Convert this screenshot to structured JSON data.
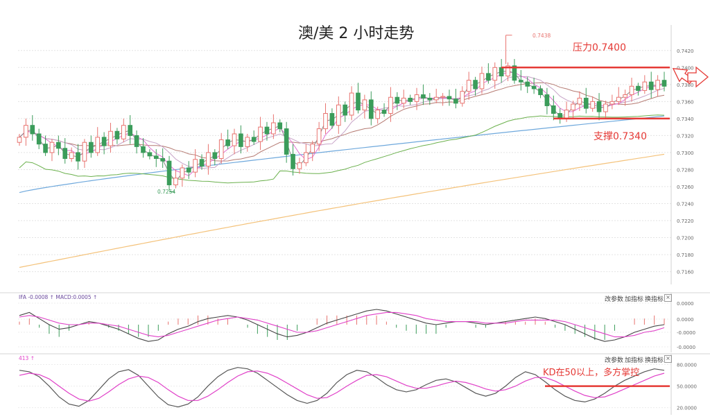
{
  "title": "澳/美 2 小时走势",
  "annotations": {
    "resistance": "压力0.7400",
    "support": "支撑0.7340",
    "kd_note": "KD在50以上，多方掌控",
    "high_marker": "0.7438",
    "low_marker": "0.7254"
  },
  "panel_labels": {
    "macd": "IFA -0.0008 ↑ MACD:0.0005 ↑",
    "kd": "413 ↑"
  },
  "toolbar": {
    "btn1": "改参数",
    "btn2": "加指标",
    "btn3": "换指标",
    "close": "×"
  },
  "colors": {
    "up": "#e8736f",
    "down": "#3b9c5a",
    "annotation": "#e53935",
    "ma_blue": "#6ea8dc",
    "ma_orange": "#f4c27a",
    "ma_green": "#6ab04c",
    "kd_k": "#555555",
    "kd_d": "#e040c8"
  },
  "chart_data": [
    {
      "type": "candlestick",
      "title": "澳/美 2 小时走势",
      "y_axis_ticks": [
        "0.7420",
        "0.7400",
        "0.7380",
        "0.7360",
        "0.7340",
        "0.7320",
        "0.7300",
        "0.7280",
        "0.7260",
        "0.7240",
        "0.7220",
        "0.7200",
        "0.7180",
        "0.7160"
      ],
      "ylim": [
        0.7145,
        0.745
      ],
      "grid": true,
      "high_label": "0.7438",
      "low_label": "0.7254",
      "resistance": 0.74,
      "support": 0.734,
      "closes": [
        0.7318,
        0.7332,
        0.7322,
        0.731,
        0.73,
        0.7312,
        0.7305,
        0.7293,
        0.73,
        0.729,
        0.7312,
        0.73,
        0.7318,
        0.7308,
        0.7325,
        0.7316,
        0.7332,
        0.732,
        0.7307,
        0.73,
        0.7296,
        0.7293,
        0.729,
        0.7262,
        0.727,
        0.7282,
        0.7277,
        0.7292,
        0.7284,
        0.73,
        0.7293,
        0.7315,
        0.7308,
        0.7322,
        0.7307,
        0.7318,
        0.7313,
        0.733,
        0.7322,
        0.7335,
        0.7328,
        0.7298,
        0.7281,
        0.7288,
        0.73,
        0.731,
        0.7328,
        0.7346,
        0.7332,
        0.7356,
        0.7344,
        0.737,
        0.735,
        0.7362,
        0.734,
        0.735,
        0.7346,
        0.7365,
        0.7358,
        0.7364,
        0.736,
        0.7368,
        0.7364,
        0.7362,
        0.7365,
        0.7366,
        0.7363,
        0.7358,
        0.7372,
        0.7385,
        0.7375,
        0.7393,
        0.7385,
        0.74,
        0.739,
        0.7402,
        0.7385,
        0.7383,
        0.7378,
        0.7375,
        0.7368,
        0.7355,
        0.7346,
        0.734,
        0.735,
        0.7357,
        0.7364,
        0.7352,
        0.736,
        0.7348,
        0.7357,
        0.736,
        0.7365,
        0.7368,
        0.7378,
        0.7373,
        0.7383,
        0.7374,
        0.7385,
        0.7378
      ],
      "ma_long_endpoints": [
        [
          0,
          0.7165
        ],
        [
          99,
          0.7298
        ]
      ],
      "ma_mid_endpoints": [
        [
          0,
          0.7253
        ],
        [
          99,
          0.7343
        ]
      ]
    },
    {
      "type": "line",
      "name": "MACD",
      "y_axis_ticks": [
        "0.0000",
        "0.0000",
        "-0.0000",
        "-0.0000"
      ],
      "dif": [
        0.6,
        0.8,
        0.4,
        0.0,
        -0.3,
        -0.2,
        0.0,
        0.2,
        0.1,
        -0.1,
        -0.3,
        -0.6,
        -0.9,
        -1.1,
        -1.0,
        -0.6,
        -0.3,
        -0.1,
        0.2,
        0.4,
        0.5,
        0.6,
        0.5,
        0.3,
        0.0,
        -0.3,
        -0.6,
        -0.8,
        -0.7,
        -0.5,
        -0.2,
        0.1,
        0.3,
        0.5,
        0.7,
        0.9,
        1.0,
        0.9,
        0.7,
        0.5,
        0.3,
        0.1,
        0.0,
        0.1,
        0.2,
        0.2,
        0.1,
        0.0,
        0.1,
        0.2,
        0.3,
        0.4,
        0.5,
        0.4,
        0.2,
        0.0,
        -0.3,
        -0.6,
        -0.9,
        -1.1,
        -1.0,
        -0.8,
        -0.5,
        -0.3,
        -0.1,
        0.0
      ],
      "dea": [
        0.5,
        0.6,
        0.5,
        0.3,
        0.1,
        0.0,
        0.0,
        0.1,
        0.1,
        0.0,
        -0.1,
        -0.3,
        -0.5,
        -0.7,
        -0.8,
        -0.7,
        -0.5,
        -0.3,
        -0.1,
        0.1,
        0.3,
        0.4,
        0.5,
        0.4,
        0.3,
        0.1,
        -0.1,
        -0.3,
        -0.5,
        -0.5,
        -0.4,
        -0.2,
        0.0,
        0.2,
        0.4,
        0.6,
        0.7,
        0.8,
        0.8,
        0.7,
        0.6,
        0.4,
        0.3,
        0.2,
        0.2,
        0.2,
        0.2,
        0.1,
        0.1,
        0.1,
        0.2,
        0.3,
        0.3,
        0.3,
        0.3,
        0.2,
        0.0,
        -0.2,
        -0.4,
        -0.6,
        -0.8,
        -0.8,
        -0.7,
        -0.5,
        -0.4,
        -0.2
      ]
    },
    {
      "type": "line",
      "name": "KD",
      "y_axis_ticks": [
        "80.0000",
        "50.0000",
        "20.0000"
      ],
      "ylim": [
        10,
        95
      ],
      "reference_line": 50,
      "k": [
        72,
        70,
        63,
        50,
        35,
        25,
        22,
        30,
        45,
        60,
        70,
        73,
        65,
        50,
        35,
        24,
        21,
        25,
        35,
        50,
        63,
        72,
        76,
        74,
        68,
        58,
        48,
        38,
        30,
        26,
        30,
        40,
        55,
        66,
        72,
        70,
        62,
        52,
        45,
        42,
        45,
        52,
        58,
        60,
        56,
        48,
        40,
        36,
        40,
        50,
        62,
        70,
        66,
        56,
        45,
        36,
        30,
        28,
        32,
        40,
        50,
        58,
        64,
        70,
        74,
        72
      ],
      "d": [
        65,
        68,
        66,
        60,
        50,
        40,
        32,
        29,
        33,
        42,
        52,
        60,
        64,
        62,
        55,
        45,
        36,
        30,
        30,
        36,
        45,
        55,
        64,
        70,
        71,
        68,
        62,
        54,
        46,
        38,
        33,
        34,
        41,
        50,
        58,
        65,
        66,
        63,
        57,
        51,
        47,
        47,
        50,
        54,
        57,
        55,
        51,
        46,
        43,
        45,
        50,
        57,
        62,
        62,
        57,
        50,
        43,
        37,
        34,
        35,
        40,
        46,
        52,
        58,
        64,
        68
      ]
    }
  ]
}
